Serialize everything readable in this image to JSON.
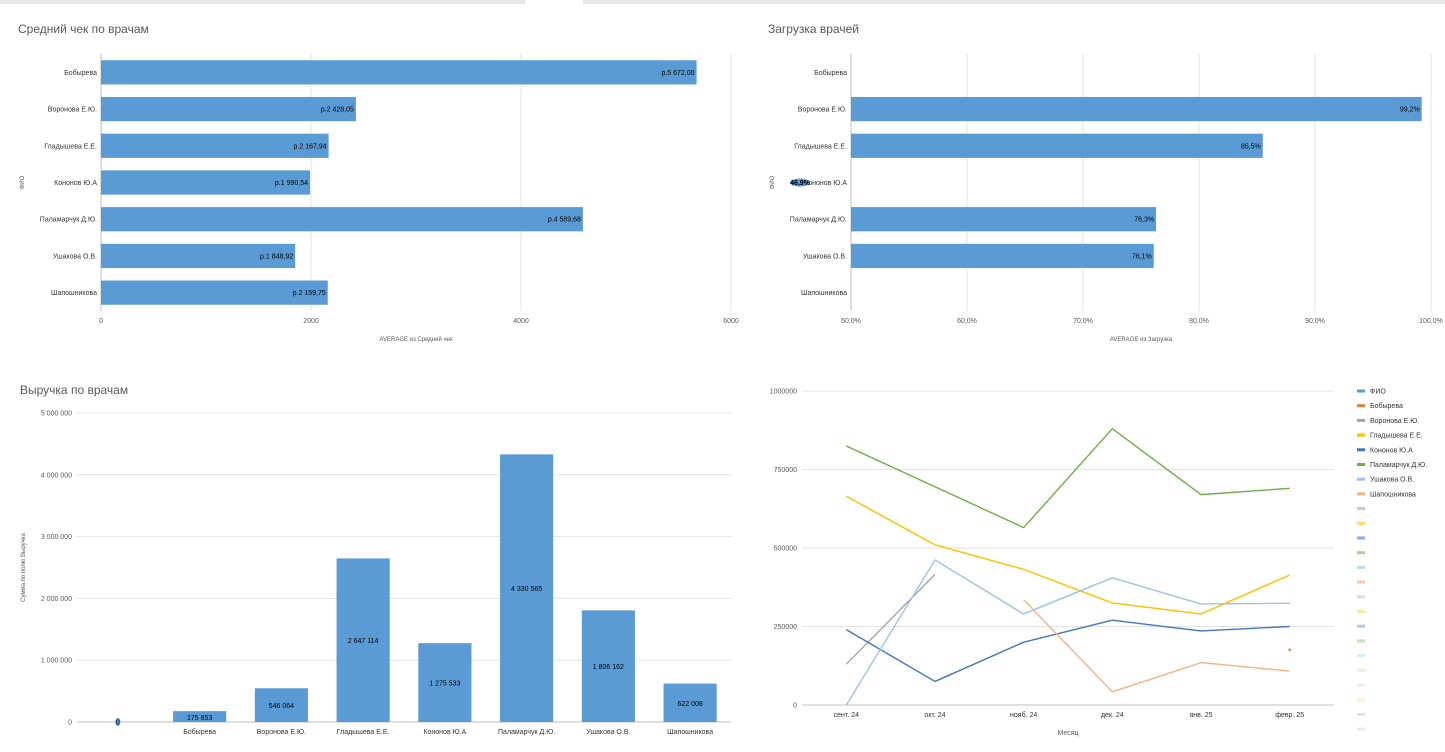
{
  "panels": {
    "avg_check": {
      "title": "Средний чек по врачам"
    },
    "load": {
      "title": "Загрузка врачей"
    },
    "revenue": {
      "title": "Выручка по врачам"
    },
    "monthly": {
      "title": ""
    }
  },
  "chart_data": [
    {
      "type": "bar",
      "orientation": "horizontal",
      "title": "Средний чек по врачам",
      "xlabel": "AVERAGE из Средний чек",
      "ylabel": "ФИО",
      "categories": [
        "Бобырева",
        "Воронова Е.Ю.",
        "Гладышева Е.Е.",
        "Кононов Ю.А",
        "Паламарчук Д.Ю.",
        "Ушакова О.В.",
        "Шапошникова"
      ],
      "values": [
        5672.0,
        2428.05,
        2167.94,
        1990.54,
        4589.68,
        1848.92,
        2159.75
      ],
      "data_labels": [
        "р.5 672,00",
        "р.2 428,05",
        "р.2 167,94",
        "р.1 990,54",
        "р.4 589,68",
        "р.1 848,92",
        "р.2 159,75"
      ],
      "xlim": [
        0,
        6000
      ],
      "xticks": [
        0,
        2000,
        4000,
        6000
      ],
      "xtick_labels": [
        "0",
        "2000",
        "4000",
        "6000"
      ],
      "grid": true,
      "color": "#5b9bd5"
    },
    {
      "type": "bar",
      "orientation": "horizontal",
      "title": "Загрузка врачей",
      "xlabel": "AVERAGE из Загрузка",
      "ylabel": "ФИО",
      "categories": [
        "Бобырева",
        "Воронова Е.Ю.",
        "Гладышева Е.Е.",
        "Кононов Ю.А",
        "Паламарчук Д.Ю.",
        "Ушакова О.В.",
        "Шапошникова"
      ],
      "values": [
        null,
        99.2,
        85.5,
        46.9,
        76.3,
        76.1,
        null
      ],
      "data_labels": [
        "",
        "99,2%",
        "85,5%",
        "46,9%",
        "76,3%",
        "76,1%",
        ""
      ],
      "xlim": [
        50,
        100
      ],
      "xticks": [
        50,
        60,
        70,
        80,
        90,
        100
      ],
      "xtick_labels": [
        "50,0%",
        "60,0%",
        "70,0%",
        "80,0%",
        "90,0%",
        "100,0%"
      ],
      "grid": true,
      "color": "#5b9bd5"
    },
    {
      "type": "bar",
      "title": "Выручка по врачам",
      "xlabel": "",
      "ylabel": "Сумма по полю Выручка",
      "categories": [
        "",
        "Бобырева",
        "Воронова Е.Ю.",
        "Гладышева Е.Е.",
        "Кононов Ю.А",
        "Паламарчук Д.Ю.",
        "Ушакова О.В.",
        "Шапошникова"
      ],
      "values": [
        0,
        175853,
        546064,
        2647114,
        1275533,
        4330565,
        1806162,
        622008
      ],
      "data_labels": [
        "0",
        "175 853",
        "546 064",
        "2 647 114",
        "1 275 533",
        "4 330 565",
        "1 806 162",
        "622 008"
      ],
      "ylim": [
        0,
        5000000
      ],
      "yticks": [
        0,
        1000000,
        2000000,
        3000000,
        4000000,
        5000000
      ],
      "ytick_labels": [
        "0",
        "1 000 000",
        "2 000 000",
        "3 000 000",
        "4 000 000",
        "5 000 000"
      ],
      "grid": true,
      "color": "#5b9bd5"
    },
    {
      "type": "line",
      "xlabel": "Месяц",
      "ylabel": "",
      "categories": [
        "сент. 24",
        "окт. 24",
        "нояб. 24",
        "дек. 24",
        "янв. 25",
        "февр. 25"
      ],
      "ylim": [
        0,
        1000000
      ],
      "yticks": [
        0,
        250000,
        500000,
        750000,
        1000000
      ],
      "ytick_labels": [
        "0",
        "250000",
        "500000",
        "750000",
        "1000000"
      ],
      "grid": true,
      "legend_position": "right",
      "legend": [
        {
          "name": "ФИО",
          "color": "#5b9bd5"
        },
        {
          "name": "Бобырева",
          "color": "#ed7d31"
        },
        {
          "name": "Воронова Е.Ю.",
          "color": "#a5a5a5"
        },
        {
          "name": "Гладышева Е.Е.",
          "color": "#ffc000"
        },
        {
          "name": "Кононов Ю.А",
          "color": "#4472c4"
        },
        {
          "name": "Паламарчук Д.Ю.",
          "color": "#70ad47"
        },
        {
          "name": "Ушакова О.В.",
          "color": "#9dc3e6"
        },
        {
          "name": "Шапошникова",
          "color": "#f4b183"
        }
      ],
      "legend_extra_swatches": [
        "#c9c9c9",
        "#ffd966",
        "#8faadc",
        "#a9d18e",
        "#bdd7ee",
        "#f8cbad",
        "#dbdbdb",
        "#ffe699",
        "#b4c7e7",
        "#c5e0b4",
        "#deebf7",
        "#fbe5d6",
        "#ededed",
        "#fff2cc",
        "#dae3f3",
        "#e2f0d9"
      ],
      "series": [
        {
          "name": "Бобырева",
          "color": "#ed7d31",
          "values": [
            null,
            null,
            null,
            null,
            null,
            175853
          ]
        },
        {
          "name": "Воронова Е.Ю.",
          "color": "#a5a5a5",
          "values": [
            130000,
            416000,
            null,
            null,
            null,
            null
          ]
        },
        {
          "name": "Гладышева Е.Е.",
          "color": "#ffc000",
          "values": [
            665000,
            510000,
            432000,
            325000,
            290000,
            414000
          ]
        },
        {
          "name": "Кононов Ю.А",
          "color": "#4472c4",
          "values": [
            240000,
            75000,
            200000,
            270000,
            236000,
            250000
          ]
        },
        {
          "name": "Паламарчук Д.Ю.",
          "color": "#70ad47",
          "values": [
            825000,
            695000,
            565000,
            880000,
            670000,
            690000
          ]
        },
        {
          "name": "Ушакова О.В.",
          "color": "#9dc3e6",
          "values": [
            0,
            462000,
            290000,
            405000,
            322000,
            324000
          ]
        },
        {
          "name": "Шапошникова",
          "color": "#f4b183",
          "values": [
            null,
            null,
            335000,
            42000,
            135000,
            108000
          ]
        }
      ]
    }
  ]
}
